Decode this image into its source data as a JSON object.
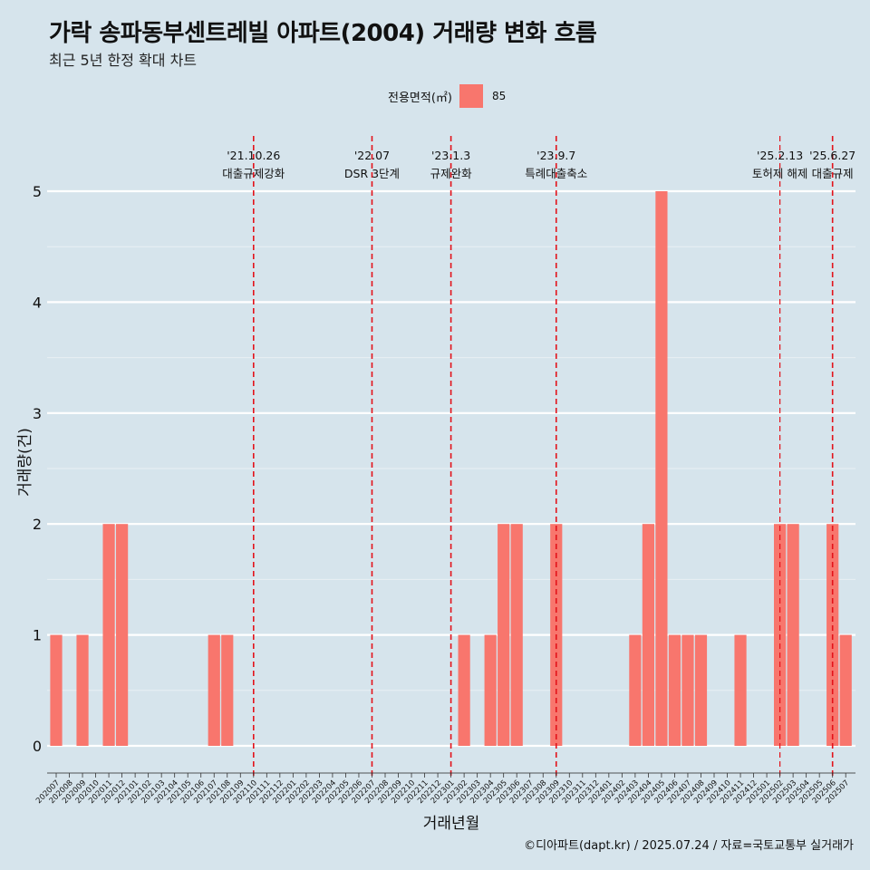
{
  "header": {
    "title": "가락 송파동부센트레빌 아파트(2004) 거래량 변화 흐름",
    "subtitle": "최근 5년 한정 확대 차트"
  },
  "legend": {
    "title": "전용면적(㎡)",
    "entry": "85",
    "color": "#f8766d"
  },
  "caption": "©디아파트(dapt.kr) / 2025.07.24 / 자료=국토교통부 실거래가",
  "chart_data": {
    "type": "bar",
    "xlabel": "거래년월",
    "ylabel": "거래량(건)",
    "ylim": [
      0,
      5
    ],
    "yticks": [
      0,
      1,
      2,
      3,
      4,
      5
    ],
    "grid": true,
    "legend_position": "top",
    "bar_color": "#f8766d",
    "categories": [
      "202007",
      "202008",
      "202009",
      "202010",
      "202011",
      "202012",
      "202101",
      "202102",
      "202103",
      "202104",
      "202105",
      "202106",
      "202107",
      "202108",
      "202109",
      "202110",
      "202111",
      "202112",
      "202201",
      "202202",
      "202203",
      "202204",
      "202205",
      "202206",
      "202207",
      "202208",
      "202209",
      "202210",
      "202211",
      "202212",
      "202301",
      "202302",
      "202303",
      "202304",
      "202305",
      "202306",
      "202307",
      "202308",
      "202309",
      "202310",
      "202311",
      "202312",
      "202401",
      "202402",
      "202403",
      "202404",
      "202405",
      "202406",
      "202407",
      "202408",
      "202409",
      "202410",
      "202411",
      "202412",
      "202501",
      "202502",
      "202503",
      "202504",
      "202505",
      "202506",
      "202507"
    ],
    "series": [
      {
        "name": "85",
        "values": [
          1,
          0,
          1,
          0,
          2,
          2,
          0,
          0,
          0,
          0,
          0,
          0,
          1,
          1,
          0,
          0,
          0,
          0,
          0,
          0,
          0,
          0,
          0,
          0,
          0,
          0,
          0,
          0,
          0,
          0,
          0,
          1,
          0,
          1,
          2,
          2,
          0,
          0,
          2,
          0,
          0,
          0,
          0,
          0,
          1,
          2,
          5,
          1,
          1,
          1,
          0,
          0,
          1,
          0,
          0,
          2,
          2,
          0,
          0,
          2,
          1
        ]
      }
    ],
    "events": [
      {
        "x": "202110",
        "date": "'21.10.26",
        "label": "대출규제강화",
        "small": false
      },
      {
        "x": "202207",
        "date": "'22.07",
        "label": "DSR 3단계",
        "small": false
      },
      {
        "x": "202301",
        "date": "'23.1.3",
        "label": "규제완화",
        "small": false
      },
      {
        "x": "202309",
        "date": "'23.9.7",
        "label": "특례대출축소",
        "small": false
      },
      {
        "x": "202502",
        "date": "'25.2.13",
        "label": "토허제 해제",
        "small": true
      },
      {
        "x": "202506",
        "date": "'25.6.27",
        "label": "대출규제",
        "small": false
      }
    ]
  }
}
